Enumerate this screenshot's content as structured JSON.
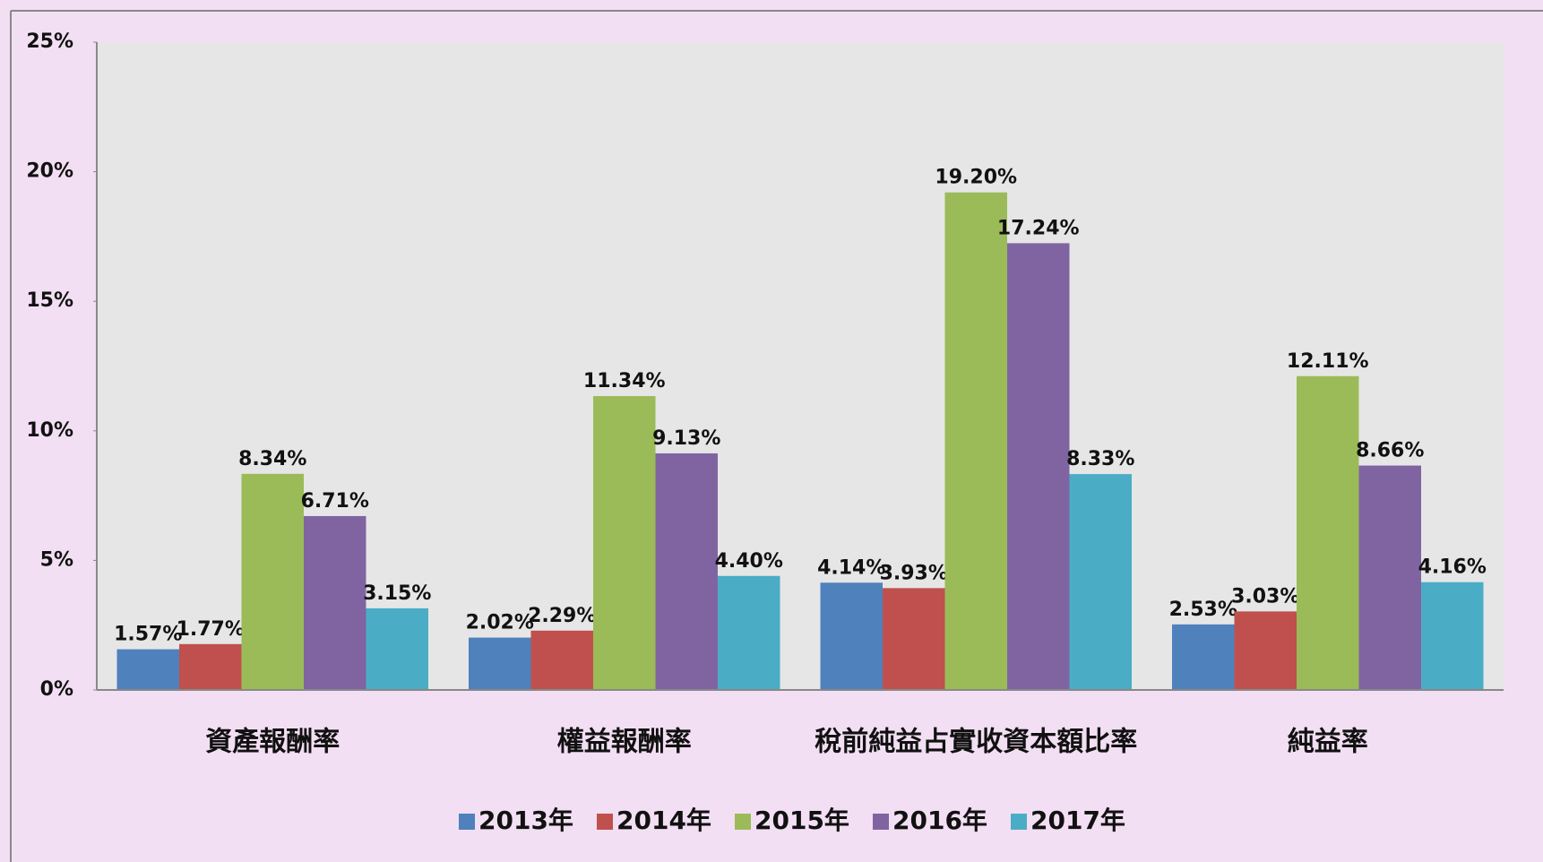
{
  "chart_data": {
    "type": "bar",
    "categories": [
      "資產報酬率",
      "權益報酬率",
      "稅前純益占實收資本額比率",
      "純益率"
    ],
    "series": [
      {
        "name": "2013年",
        "color": "#4f81bd",
        "values": [
          1.57,
          2.02,
          4.14,
          2.53
        ],
        "value_labels": [
          "1.57%",
          "2.02%",
          "4.14%",
          "2.53%"
        ]
      },
      {
        "name": "2014年",
        "color": "#c0504d",
        "values": [
          1.77,
          2.29,
          3.93,
          3.03
        ],
        "value_labels": [
          "1.77%",
          "2.29%",
          "3.93%",
          "3.03%"
        ]
      },
      {
        "name": "2015年",
        "color": "#9bbb59",
        "values": [
          8.34,
          11.34,
          19.2,
          12.11
        ],
        "value_labels": [
          "8.34%",
          "11.34%",
          "19.20%",
          "12.11%"
        ]
      },
      {
        "name": "2016年",
        "color": "#8064a2",
        "values": [
          6.71,
          9.13,
          17.24,
          8.66
        ],
        "value_labels": [
          "6.71%",
          "9.13%",
          "17.24%",
          "8.66%"
        ]
      },
      {
        "name": "2017年",
        "color": "#4bacc6",
        "values": [
          3.15,
          4.4,
          8.33,
          4.16
        ],
        "value_labels": [
          "3.15%",
          "4.40%",
          "8.33%",
          "4.16%"
        ]
      }
    ],
    "ylim": [
      0,
      25
    ],
    "yticks": [
      {
        "value": 0,
        "label": "0%"
      },
      {
        "value": 5,
        "label": "5%"
      },
      {
        "value": 10,
        "label": "10%"
      },
      {
        "value": 15,
        "label": "15%"
      },
      {
        "value": 20,
        "label": "20%"
      },
      {
        "value": 25,
        "label": "25%"
      }
    ],
    "legend": "bottom"
  }
}
